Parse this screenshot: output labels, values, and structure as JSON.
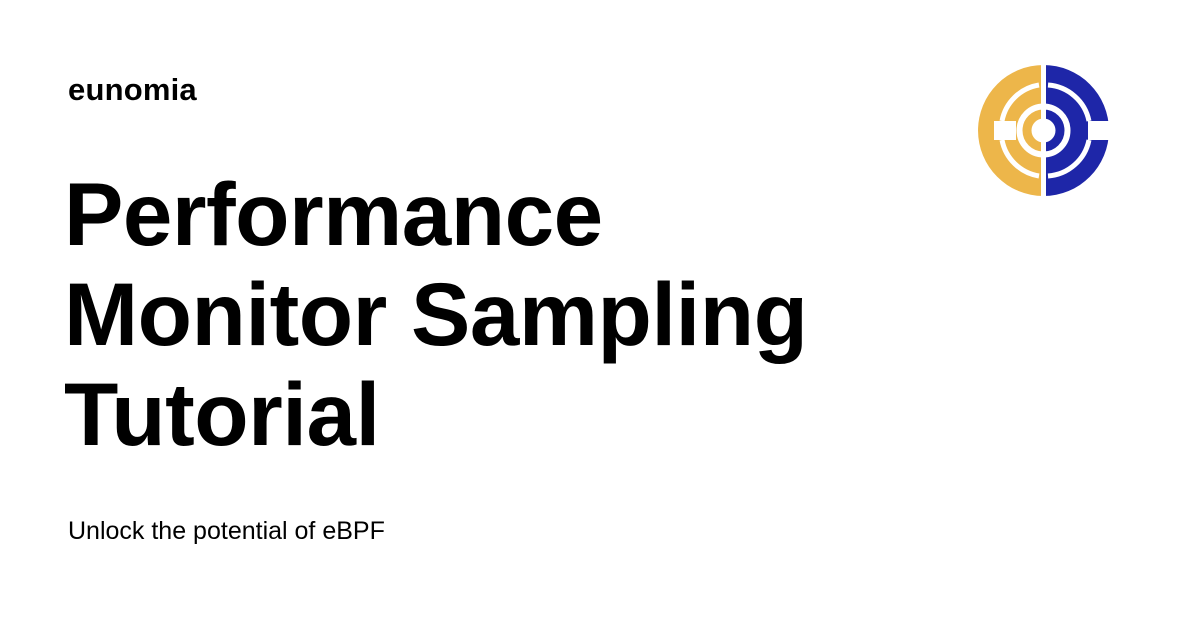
{
  "site": {
    "name": "eunomia"
  },
  "title": {
    "lines": [
      "Performance",
      "Monitor Sampling",
      "Tutorial"
    ]
  },
  "subtitle": "Unlock the potential of eBPF",
  "logo": {
    "icon": "eunomia-logo-icon",
    "colors": {
      "left": "#EDB64A",
      "right": "#1E26A8",
      "background": "#FFFFFF"
    }
  }
}
